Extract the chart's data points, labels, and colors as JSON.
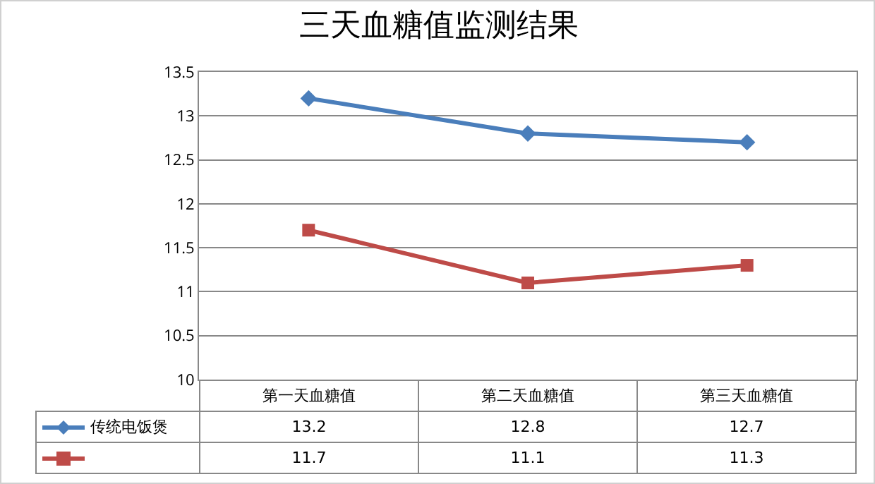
{
  "chart_data": {
    "type": "line",
    "title": "三天血糖值监测结果",
    "categories": [
      "第一天血糖值",
      "第二天血糖值",
      "第三天血糖值"
    ],
    "series": [
      {
        "name": "传统电饭煲",
        "color": "#4a7ebb",
        "values": [
          13.2,
          12.8,
          12.7
        ],
        "marker": "diamond"
      },
      {
        "color": "#be4b48",
        "values": [
          11.7,
          11.1,
          11.3
        ],
        "marker": "square"
      }
    ],
    "ylim": [
      10,
      13.5
    ],
    "yticks": [
      10,
      10.5,
      11,
      11.5,
      12,
      12.5,
      13,
      13.5
    ],
    "grid": "y",
    "legend": "bottom",
    "data_labels": true
  }
}
